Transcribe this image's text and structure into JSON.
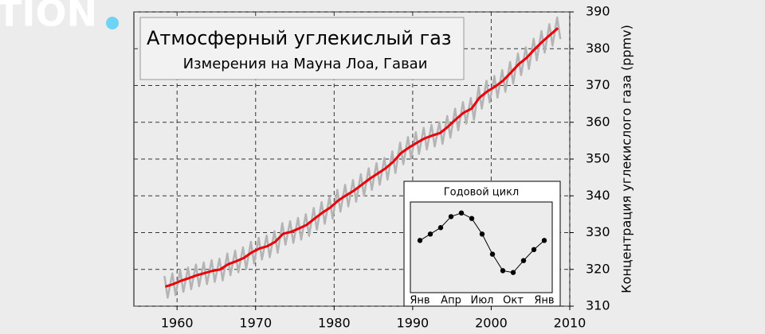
{
  "watermark": "TION",
  "chart_data": [
    {
      "type": "line",
      "title": "Атмосферный углекислый газ",
      "subtitle": "Измерения на Мауна Лоа, Гаваи",
      "y_label": "Концентрация углекислого газа (ppmv)",
      "xlim": [
        1954.5,
        2010
      ],
      "xticks": [
        1960,
        1970,
        1980,
        1990,
        2000,
        2010
      ],
      "ylim": [
        310,
        390
      ],
      "yticks": [
        310,
        320,
        330,
        340,
        350,
        360,
        370,
        380,
        390
      ],
      "grid": true,
      "series": [
        {
          "color": "#b4b4b4",
          "x": [
            1958.4,
            1958.8,
            1959.4,
            1959.8,
            1960.4,
            1960.8,
            1961.4,
            1961.8,
            1962.4,
            1962.8,
            1963.4,
            1963.8,
            1964.4,
            1964.8,
            1965.4,
            1965.8,
            1966.4,
            1966.8,
            1967.4,
            1967.8,
            1968.4,
            1968.8,
            1969.4,
            1969.8,
            1970.4,
            1970.8,
            1971.4,
            1971.8,
            1972.4,
            1972.8,
            1973.4,
            1973.8,
            1974.4,
            1974.8,
            1975.4,
            1975.8,
            1976.4,
            1976.8,
            1977.4,
            1977.8,
            1978.4,
            1978.8,
            1979.4,
            1979.8,
            1980.4,
            1980.8,
            1981.4,
            1981.8,
            1982.4,
            1982.8,
            1983.4,
            1983.8,
            1984.4,
            1984.8,
            1985.4,
            1985.8,
            1986.4,
            1986.8,
            1987.4,
            1987.8,
            1988.4,
            1988.8,
            1989.4,
            1989.8,
            1990.4,
            1990.8,
            1991.4,
            1991.8,
            1992.4,
            1992.8,
            1993.4,
            1993.8,
            1994.4,
            1994.8,
            1995.4,
            1995.8,
            1996.4,
            1996.8,
            1997.4,
            1997.8,
            1998.4,
            1998.8,
            1999.4,
            1999.8,
            2000.4,
            2000.8,
            2001.4,
            2001.8,
            2002.4,
            2002.8,
            2003.4,
            2003.8,
            2004.4,
            2004.8,
            2005.4,
            2005.8,
            2006.4,
            2006.8,
            2007.4,
            2007.8,
            2008.4,
            2008.8
          ],
          "values": [
            318.2,
            312.3,
            318.9,
            313.0,
            319.8,
            313.9,
            320.5,
            314.6,
            321.3,
            315.4,
            321.9,
            316.0,
            322.5,
            316.6,
            322.9,
            317.0,
            324.3,
            318.4,
            325.1,
            319.2,
            326.0,
            320.1,
            327.5,
            321.6,
            328.6,
            322.7,
            329.2,
            323.3,
            330.4,
            324.5,
            332.6,
            326.7,
            333.1,
            327.2,
            334.0,
            328.1,
            335.0,
            329.1,
            336.7,
            330.8,
            338.3,
            332.4,
            339.7,
            333.8,
            341.6,
            335.7,
            343.0,
            337.1,
            344.3,
            338.4,
            345.9,
            340.0,
            347.5,
            341.6,
            348.9,
            343.0,
            350.3,
            344.4,
            352.1,
            346.2,
            354.5,
            348.6,
            356.0,
            350.1,
            357.3,
            351.4,
            358.5,
            352.6,
            359.3,
            353.4,
            360.0,
            354.1,
            361.7,
            355.8,
            363.7,
            357.8,
            365.5,
            359.6,
            366.6,
            360.7,
            369.6,
            363.7,
            371.3,
            365.4,
            372.6,
            366.7,
            374.2,
            368.3,
            376.4,
            370.5,
            378.7,
            372.8,
            380.4,
            374.5,
            382.7,
            376.8,
            384.8,
            378.9,
            386.7,
            380.8,
            388.5,
            382.6
          ]
        },
        {
          "color": "#e8000b",
          "x": [
            1958.5,
            1959.5,
            1960.5,
            1961.5,
            1962.5,
            1963.5,
            1964.5,
            1965.5,
            1966.5,
            1967.5,
            1968.5,
            1969.5,
            1970.5,
            1971.5,
            1972.5,
            1973.5,
            1974.5,
            1975.5,
            1976.5,
            1977.5,
            1978.5,
            1979.5,
            1980.5,
            1981.5,
            1982.5,
            1983.5,
            1984.5,
            1985.5,
            1986.5,
            1987.5,
            1988.5,
            1989.5,
            1990.5,
            1991.5,
            1992.5,
            1993.5,
            1994.5,
            1995.5,
            1996.5,
            1997.5,
            1998.5,
            1999.5,
            2000.5,
            2001.5,
            2002.5,
            2003.5,
            2004.5,
            2005.5,
            2006.5,
            2007.5,
            2008.5
          ],
          "values": [
            315.3,
            316.0,
            316.9,
            317.6,
            318.4,
            319.0,
            319.6,
            320.0,
            321.4,
            322.2,
            323.1,
            324.6,
            325.7,
            326.3,
            327.5,
            329.7,
            330.2,
            331.1,
            332.1,
            333.8,
            335.4,
            336.8,
            338.7,
            340.1,
            341.4,
            343.0,
            344.6,
            346.0,
            347.4,
            349.2,
            351.6,
            353.1,
            354.4,
            355.6,
            356.4,
            357.1,
            358.8,
            360.8,
            362.6,
            363.7,
            366.7,
            368.4,
            369.7,
            371.3,
            373.5,
            375.8,
            377.5,
            379.8,
            381.9,
            383.8,
            385.6
          ]
        }
      ]
    },
    {
      "type": "line",
      "title": "Годовой цикл",
      "categories": [
        "Янв",
        null,
        null,
        "Апр",
        null,
        null,
        "Июл",
        null,
        null,
        "Окт",
        null,
        null,
        "Янв"
      ],
      "values": [
        0,
        0.7,
        1.4,
        2.6,
        3.0,
        2.4,
        0.7,
        -1.5,
        -3.3,
        -3.5,
        -2.2,
        -1.0,
        0
      ],
      "ylim": [
        -5.7,
        4.2
      ],
      "color": "#000000"
    }
  ]
}
